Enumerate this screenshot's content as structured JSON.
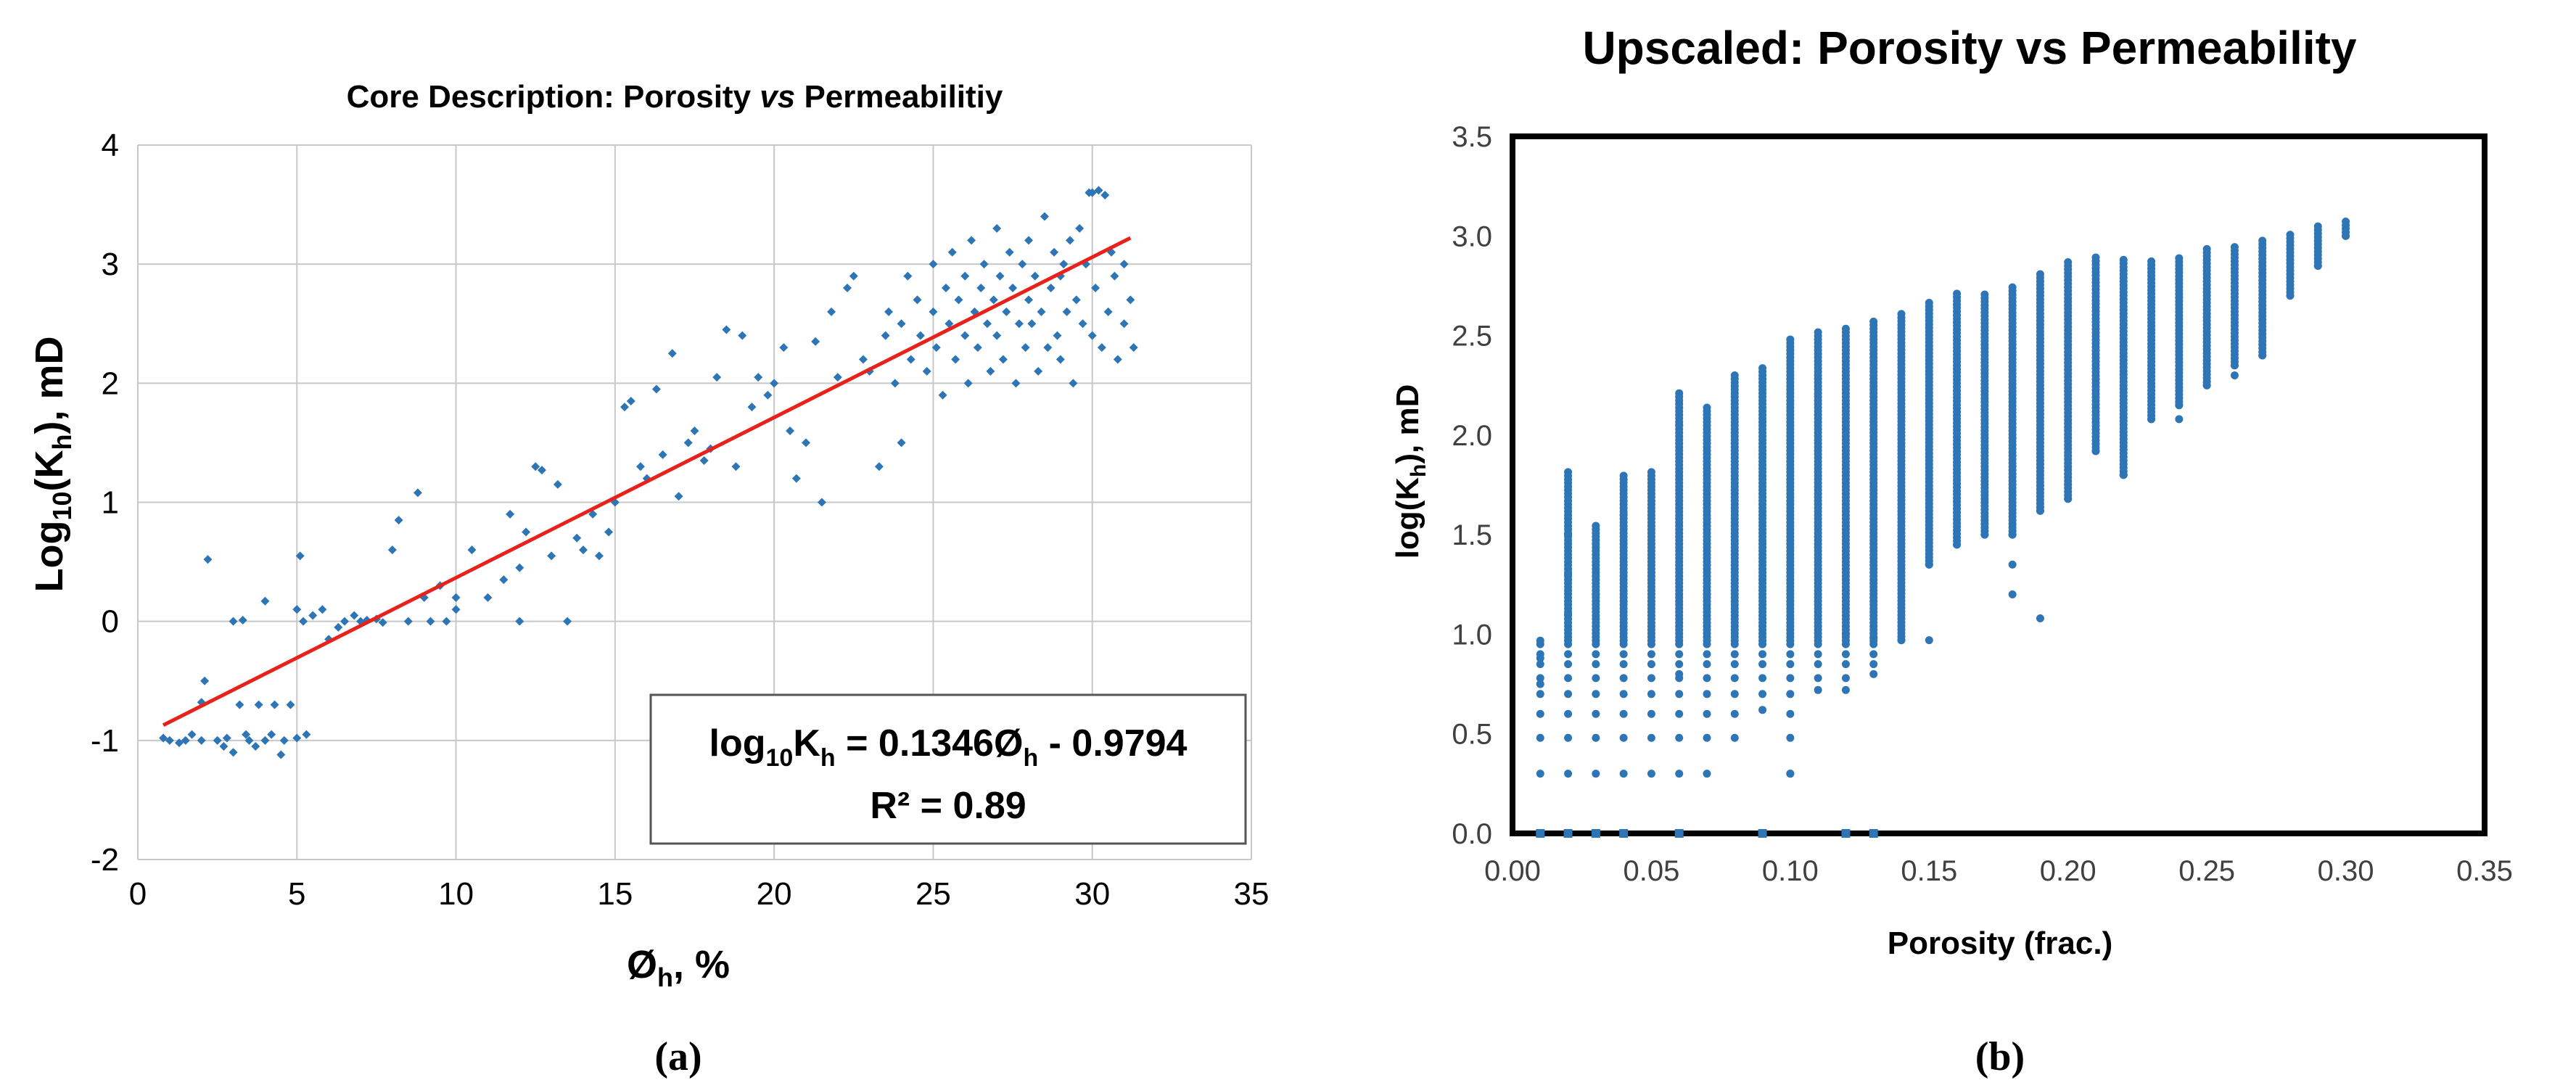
{
  "figure": {
    "left_caption": "(a)",
    "right_caption": "(b)",
    "colors": {
      "point": "#2e75b6",
      "trend": "#e8221b",
      "grid": "#c8c8c8",
      "axis": "#7f7f7f",
      "text": "#000000"
    }
  },
  "chart_data": [
    {
      "type": "scatter",
      "title_prefix": "Core Description: Porosity ",
      "title_italic": "vs",
      "title_suffix": " Permeabilitiy",
      "xlabel": {
        "main": "Ø",
        "sub": "h",
        "tail": ", %"
      },
      "ylabel": {
        "main": "Log",
        "sub1": "10",
        "mid": "(K",
        "sub2": "h",
        "tail": "), mD"
      },
      "xlim": [
        0,
        35
      ],
      "ylim": [
        -2,
        4
      ],
      "xticks": [
        0,
        5,
        10,
        15,
        20,
        25,
        30,
        35
      ],
      "yticks": [
        -2,
        -1,
        0,
        1,
        2,
        3,
        4
      ],
      "grid": true,
      "trendline": {
        "slope": 0.1346,
        "intercept": -0.9794,
        "x_range": [
          0.8,
          31.2
        ]
      },
      "annotation": {
        "line1_pre": "log",
        "line1_sub1": "10",
        "line1_mid": "K",
        "line1_sub2": "h",
        "line1_eq": " = 0.1346Ø",
        "line1_sub3": "h",
        "line1_tail": " - 0.9794",
        "line2": "R² = 0.89"
      },
      "points": [
        [
          0.8,
          -0.98
        ],
        [
          1.0,
          -1.0
        ],
        [
          1.3,
          -1.02
        ],
        [
          1.5,
          -1.0
        ],
        [
          1.7,
          -0.95
        ],
        [
          2.0,
          -1.0
        ],
        [
          2.0,
          -0.68
        ],
        [
          2.1,
          -0.5
        ],
        [
          2.2,
          0.52
        ],
        [
          2.5,
          -1.0
        ],
        [
          2.7,
          -1.05
        ],
        [
          2.8,
          -0.98
        ],
        [
          3.0,
          -1.1
        ],
        [
          3.0,
          0.0
        ],
        [
          3.2,
          -0.7
        ],
        [
          3.3,
          0.01
        ],
        [
          3.4,
          -0.95
        ],
        [
          3.5,
          -1.0
        ],
        [
          3.7,
          -1.05
        ],
        [
          3.8,
          -0.7
        ],
        [
          4.0,
          -1.0
        ],
        [
          4.0,
          0.17
        ],
        [
          4.2,
          -0.95
        ],
        [
          4.3,
          -0.7
        ],
        [
          4.5,
          -1.12
        ],
        [
          4.6,
          -1.0
        ],
        [
          4.8,
          -0.7
        ],
        [
          5.0,
          -0.98
        ],
        [
          5.0,
          0.1
        ],
        [
          5.1,
          0.55
        ],
        [
          5.2,
          0.0
        ],
        [
          5.3,
          -0.95
        ],
        [
          5.5,
          0.05
        ],
        [
          5.8,
          0.1
        ],
        [
          6.0,
          -0.15
        ],
        [
          6.3,
          -0.05
        ],
        [
          6.5,
          0.0
        ],
        [
          6.8,
          0.05
        ],
        [
          7.0,
          0.0
        ],
        [
          7.2,
          0.01
        ],
        [
          7.5,
          0.02
        ],
        [
          7.7,
          -0.01
        ],
        [
          8.0,
          0.6
        ],
        [
          8.2,
          0.85
        ],
        [
          8.5,
          0.0
        ],
        [
          8.8,
          1.08
        ],
        [
          9.0,
          0.2
        ],
        [
          9.2,
          0.0
        ],
        [
          9.5,
          0.3
        ],
        [
          9.7,
          0.0
        ],
        [
          10.0,
          0.2
        ],
        [
          10.0,
          0.1
        ],
        [
          10.5,
          0.6
        ],
        [
          11.0,
          0.2
        ],
        [
          11.5,
          0.35
        ],
        [
          11.7,
          0.9
        ],
        [
          12.0,
          0.0
        ],
        [
          12.0,
          0.45
        ],
        [
          12.2,
          0.75
        ],
        [
          12.5,
          1.3
        ],
        [
          12.7,
          1.27
        ],
        [
          13.0,
          0.55
        ],
        [
          13.2,
          1.15
        ],
        [
          13.5,
          0.0
        ],
        [
          13.8,
          0.7
        ],
        [
          14.0,
          0.6
        ],
        [
          14.3,
          0.9
        ],
        [
          14.5,
          0.55
        ],
        [
          14.8,
          0.75
        ],
        [
          15.0,
          1.0
        ],
        [
          15.3,
          1.8
        ],
        [
          15.5,
          1.85
        ],
        [
          15.8,
          1.3
        ],
        [
          16.0,
          1.2
        ],
        [
          16.3,
          1.95
        ],
        [
          16.5,
          1.4
        ],
        [
          16.8,
          2.25
        ],
        [
          17.0,
          1.05
        ],
        [
          17.3,
          1.5
        ],
        [
          17.5,
          1.6
        ],
        [
          17.8,
          1.35
        ],
        [
          18.0,
          1.45
        ],
        [
          18.2,
          2.05
        ],
        [
          18.5,
          2.45
        ],
        [
          18.8,
          1.3
        ],
        [
          19.0,
          2.4
        ],
        [
          19.3,
          1.8
        ],
        [
          19.5,
          2.05
        ],
        [
          19.8,
          1.9
        ],
        [
          20.0,
          2.0
        ],
        [
          20.3,
          2.3
        ],
        [
          20.5,
          1.6
        ],
        [
          20.7,
          1.2
        ],
        [
          21.0,
          1.5
        ],
        [
          21.3,
          2.35
        ],
        [
          21.5,
          1.0
        ],
        [
          21.8,
          2.6
        ],
        [
          22.0,
          2.05
        ],
        [
          22.3,
          2.8
        ],
        [
          22.5,
          2.9
        ],
        [
          22.8,
          2.2
        ],
        [
          23.0,
          2.1
        ],
        [
          23.3,
          1.3
        ],
        [
          23.5,
          2.4
        ],
        [
          23.6,
          2.6
        ],
        [
          23.8,
          2.0
        ],
        [
          24.0,
          2.5
        ],
        [
          24.0,
          1.5
        ],
        [
          24.2,
          2.9
        ],
        [
          24.3,
          2.2
        ],
        [
          24.5,
          2.7
        ],
        [
          24.6,
          2.4
        ],
        [
          24.8,
          2.1
        ],
        [
          25.0,
          2.6
        ],
        [
          25.0,
          3.0
        ],
        [
          25.1,
          2.3
        ],
        [
          25.3,
          1.9
        ],
        [
          25.4,
          2.8
        ],
        [
          25.5,
          2.5
        ],
        [
          25.6,
          3.1
        ],
        [
          25.7,
          2.2
        ],
        [
          25.8,
          2.7
        ],
        [
          26.0,
          2.4
        ],
        [
          26.0,
          2.9
        ],
        [
          26.1,
          2.0
        ],
        [
          26.2,
          3.2
        ],
        [
          26.3,
          2.6
        ],
        [
          26.4,
          2.3
        ],
        [
          26.5,
          2.8
        ],
        [
          26.6,
          3.0
        ],
        [
          26.7,
          2.5
        ],
        [
          26.8,
          2.1
        ],
        [
          26.9,
          2.7
        ],
        [
          27.0,
          3.3
        ],
        [
          27.0,
          2.4
        ],
        [
          27.1,
          2.9
        ],
        [
          27.2,
          2.2
        ],
        [
          27.3,
          2.6
        ],
        [
          27.4,
          3.1
        ],
        [
          27.5,
          2.8
        ],
        [
          27.6,
          2.0
        ],
        [
          27.7,
          2.5
        ],
        [
          27.8,
          3.0
        ],
        [
          27.9,
          2.3
        ],
        [
          28.0,
          2.7
        ],
        [
          28.0,
          3.2
        ],
        [
          28.1,
          2.5
        ],
        [
          28.2,
          2.9
        ],
        [
          28.3,
          2.1
        ],
        [
          28.4,
          2.6
        ],
        [
          28.5,
          3.4
        ],
        [
          28.6,
          2.3
        ],
        [
          28.7,
          2.8
        ],
        [
          28.8,
          3.1
        ],
        [
          28.9,
          2.4
        ],
        [
          29.0,
          2.9
        ],
        [
          29.0,
          2.2
        ],
        [
          29.1,
          3.0
        ],
        [
          29.2,
          2.6
        ],
        [
          29.3,
          3.2
        ],
        [
          29.4,
          2.0
        ],
        [
          29.5,
          2.7
        ],
        [
          29.6,
          3.3
        ],
        [
          29.7,
          2.5
        ],
        [
          29.8,
          3.0
        ],
        [
          29.9,
          3.6
        ],
        [
          30.0,
          3.6
        ],
        [
          30.0,
          2.4
        ],
        [
          30.1,
          2.8
        ],
        [
          30.2,
          3.62
        ],
        [
          30.3,
          2.3
        ],
        [
          30.4,
          3.58
        ],
        [
          30.5,
          2.6
        ],
        [
          30.6,
          3.1
        ],
        [
          30.7,
          2.9
        ],
        [
          30.8,
          2.2
        ],
        [
          31.0,
          2.5
        ],
        [
          31.0,
          3.0
        ],
        [
          31.2,
          2.7
        ],
        [
          31.3,
          2.3
        ]
      ]
    },
    {
      "type": "scatter",
      "title": "Upscaled: Porosity vs Permeability",
      "xlabel": "Porosity (frac.)",
      "ylabel": {
        "main": "log(K",
        "sub": "h",
        "tail": "), mD"
      },
      "xlim": [
        0,
        0.35
      ],
      "ylim": [
        0,
        3.5
      ],
      "xticks": [
        "0.00",
        "0.05",
        "0.10",
        "0.15",
        "0.20",
        "0.25",
        "0.30",
        "0.35"
      ],
      "yticks": [
        "0.0",
        "0.5",
        "1.0",
        "1.5",
        "2.0",
        "2.5",
        "3.0",
        "3.5"
      ],
      "grid": false,
      "columns": [
        {
          "x": 0.01,
          "ymin": 0.3,
          "ymax": 0.97,
          "zero": true
        },
        {
          "x": 0.02,
          "ymin": 0.3,
          "ymax": 1.82,
          "zero": true
        },
        {
          "x": 0.03,
          "ymin": 0.3,
          "ymax": 1.55,
          "zero": true
        },
        {
          "x": 0.04,
          "ymin": 0.3,
          "ymax": 1.8,
          "zero": true
        },
        {
          "x": 0.05,
          "ymin": 0.3,
          "ymax": 1.83,
          "zero": false
        },
        {
          "x": 0.06,
          "ymin": 0.3,
          "ymax": 2.22,
          "zero": true
        },
        {
          "x": 0.07,
          "ymin": 0.3,
          "ymax": 2.15,
          "zero": false
        },
        {
          "x": 0.08,
          "ymin": 0.48,
          "ymax": 2.3,
          "zero": false
        },
        {
          "x": 0.09,
          "ymin": 0.62,
          "ymax": 2.35,
          "zero": true
        },
        {
          "x": 0.1,
          "ymin": 0.3,
          "ymax": 2.48,
          "zero": false
        },
        {
          "x": 0.11,
          "ymin": 0.72,
          "ymax": 2.52,
          "zero": false
        },
        {
          "x": 0.12,
          "ymin": 0.72,
          "ymax": 2.55,
          "zero": true
        },
        {
          "x": 0.13,
          "ymin": 0.8,
          "ymax": 2.58,
          "zero": true
        },
        {
          "x": 0.14,
          "ymin": 0.97,
          "ymax": 2.62,
          "zero": false
        },
        {
          "x": 0.15,
          "ymin": 1.35,
          "ymax": 2.68,
          "zero": false
        },
        {
          "x": 0.16,
          "ymin": 1.45,
          "ymax": 2.72,
          "zero": false
        },
        {
          "x": 0.17,
          "ymin": 1.5,
          "ymax": 2.72,
          "zero": false
        },
        {
          "x": 0.18,
          "ymin": 1.5,
          "ymax": 2.75,
          "zero": false
        },
        {
          "x": 0.19,
          "ymin": 1.62,
          "ymax": 2.82,
          "zero": false
        },
        {
          "x": 0.2,
          "ymin": 1.68,
          "ymax": 2.88,
          "zero": false
        },
        {
          "x": 0.21,
          "ymin": 1.92,
          "ymax": 2.9,
          "zero": false
        },
        {
          "x": 0.22,
          "ymin": 1.8,
          "ymax": 2.88,
          "zero": false
        },
        {
          "x": 0.23,
          "ymin": 2.08,
          "ymax": 2.88,
          "zero": false
        },
        {
          "x": 0.24,
          "ymin": 2.15,
          "ymax": 2.9,
          "zero": false
        },
        {
          "x": 0.25,
          "ymin": 2.25,
          "ymax": 2.95,
          "zero": false
        },
        {
          "x": 0.26,
          "ymin": 2.35,
          "ymax": 2.95,
          "zero": false
        },
        {
          "x": 0.27,
          "ymin": 2.4,
          "ymax": 2.98,
          "zero": false
        },
        {
          "x": 0.28,
          "ymin": 2.7,
          "ymax": 3.02,
          "zero": false
        },
        {
          "x": 0.29,
          "ymin": 2.85,
          "ymax": 3.05,
          "zero": false
        },
        {
          "x": 0.3,
          "ymin": 3.0,
          "ymax": 3.08,
          "zero": false
        }
      ],
      "outliers": [
        [
          0.01,
          0.88
        ],
        [
          0.01,
          0.75
        ],
        [
          0.02,
          1.3
        ],
        [
          0.02,
          1.1
        ],
        [
          0.02,
          1.5
        ],
        [
          0.03,
          1.2
        ],
        [
          0.04,
          1.6
        ],
        [
          0.06,
          0.8
        ],
        [
          0.06,
          2.05
        ],
        [
          0.07,
          1.2
        ],
        [
          0.09,
          0.62
        ],
        [
          0.1,
          0.3
        ],
        [
          0.11,
          0.72
        ],
        [
          0.12,
          0.72
        ],
        [
          0.12,
          1.0
        ],
        [
          0.13,
          0.8
        ],
        [
          0.13,
          0.98
        ],
        [
          0.14,
          0.97
        ],
        [
          0.15,
          0.97
        ],
        [
          0.18,
          1.2
        ],
        [
          0.18,
          1.35
        ],
        [
          0.18,
          1.5
        ],
        [
          0.19,
          1.08
        ],
        [
          0.22,
          1.8
        ],
        [
          0.24,
          2.08
        ],
        [
          0.26,
          2.3
        ]
      ]
    }
  ]
}
